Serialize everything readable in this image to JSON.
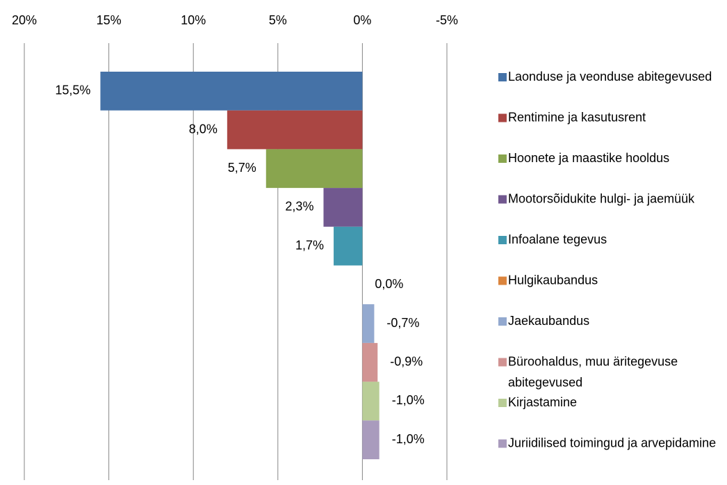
{
  "chart_data": {
    "type": "bar",
    "orientation": "horizontal",
    "xlim": [
      20,
      -5
    ],
    "xticks": [
      {
        "value": 20,
        "label": "20%"
      },
      {
        "value": 15,
        "label": "15%"
      },
      {
        "value": 10,
        "label": "10%"
      },
      {
        "value": 5,
        "label": "5%"
      },
      {
        "value": 0,
        "label": "0%"
      },
      {
        "value": -5,
        "label": "-5%"
      }
    ],
    "grid": true,
    "legend": "right",
    "series": [
      {
        "name": "Laonduse ja veonduse abitegevused",
        "color": "#4572a7",
        "values": [
          15.5
        ],
        "value_labels": [
          "15,5%"
        ]
      },
      {
        "name": "Rentimine ja kasutusrent",
        "color": "#aa4643",
        "values": [
          8.0
        ],
        "value_labels": [
          "8,0%"
        ]
      },
      {
        "name": "Hoonete ja maastike hooldus",
        "color": "#89a54e",
        "values": [
          5.7
        ],
        "value_labels": [
          "5,7%"
        ]
      },
      {
        "name": "Mootorsõidukite hulgi- ja jaemüük",
        "color": "#71588f",
        "values": [
          2.3
        ],
        "value_labels": [
          "2,3%"
        ]
      },
      {
        "name": "Infoalane tegevus",
        "color": "#4198af",
        "values": [
          1.7
        ],
        "value_labels": [
          "1,7%"
        ]
      },
      {
        "name": "Hulgikaubandus",
        "color": "#db843d",
        "values": [
          0.0
        ],
        "value_labels": [
          "0,0%"
        ]
      },
      {
        "name": "Jaekaubandus",
        "color": "#93a9cf",
        "values": [
          -0.7
        ],
        "value_labels": [
          "-0,7%"
        ]
      },
      {
        "name": "Büroohaldus, muu äritegevuse abitegevused",
        "color": "#d19392",
        "values": [
          -0.9
        ],
        "value_labels": [
          "-0,9%"
        ]
      },
      {
        "name": "Kirjastamine",
        "color": "#b9cd96",
        "values": [
          -1.0
        ],
        "value_labels": [
          "-1,0%"
        ]
      },
      {
        "name": "Juriidilised toimingud ja arvepidamine",
        "color": "#a99bbd",
        "values": [
          -1.0
        ],
        "value_labels": [
          "-1,0%"
        ]
      }
    ]
  }
}
